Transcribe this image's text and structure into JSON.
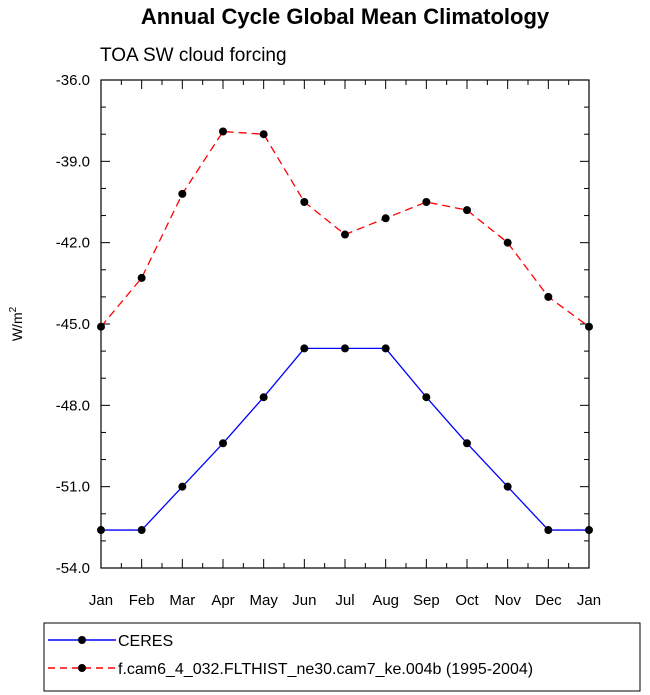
{
  "chart_data": {
    "type": "line",
    "title": "Annual Cycle Global Mean Climatology",
    "subtitle": "TOA SW cloud forcing",
    "ylabel": "W/m",
    "ylabel_superscript": "2",
    "xlabel": "",
    "categories": [
      "Jan",
      "Feb",
      "Mar",
      "Apr",
      "May",
      "Jun",
      "Jul",
      "Aug",
      "Sep",
      "Oct",
      "Nov",
      "Dec",
      "Jan"
    ],
    "ylim": [
      -54.0,
      -36.0
    ],
    "yticks": [
      -36.0,
      -39.0,
      -42.0,
      -45.0,
      -48.0,
      -51.0,
      -54.0
    ],
    "ytick_labels": [
      "-36.0",
      "-39.0",
      "-42.0",
      "-45.0",
      "-48.0",
      "-51.0",
      "-54.0"
    ],
    "series": [
      {
        "name": "CERES",
        "color": "#0000ff",
        "style": "solid",
        "values": [
          -52.6,
          -52.6,
          -51.0,
          -49.4,
          -47.7,
          -45.9,
          -45.9,
          -45.9,
          -47.7,
          -49.4,
          -51.0,
          -52.6,
          -52.6
        ]
      },
      {
        "name": "f.cam6_4_032.FLTHIST_ne30.cam7_ke.004b (1995-2004)",
        "color": "#ff0000",
        "style": "dashed",
        "values": [
          -45.1,
          -43.3,
          -40.2,
          -37.9,
          -38.0,
          -40.5,
          -41.7,
          -41.1,
          -40.5,
          -40.8,
          -42.0,
          -44.0,
          -45.1
        ]
      }
    ],
    "legend_position": "bottom"
  }
}
